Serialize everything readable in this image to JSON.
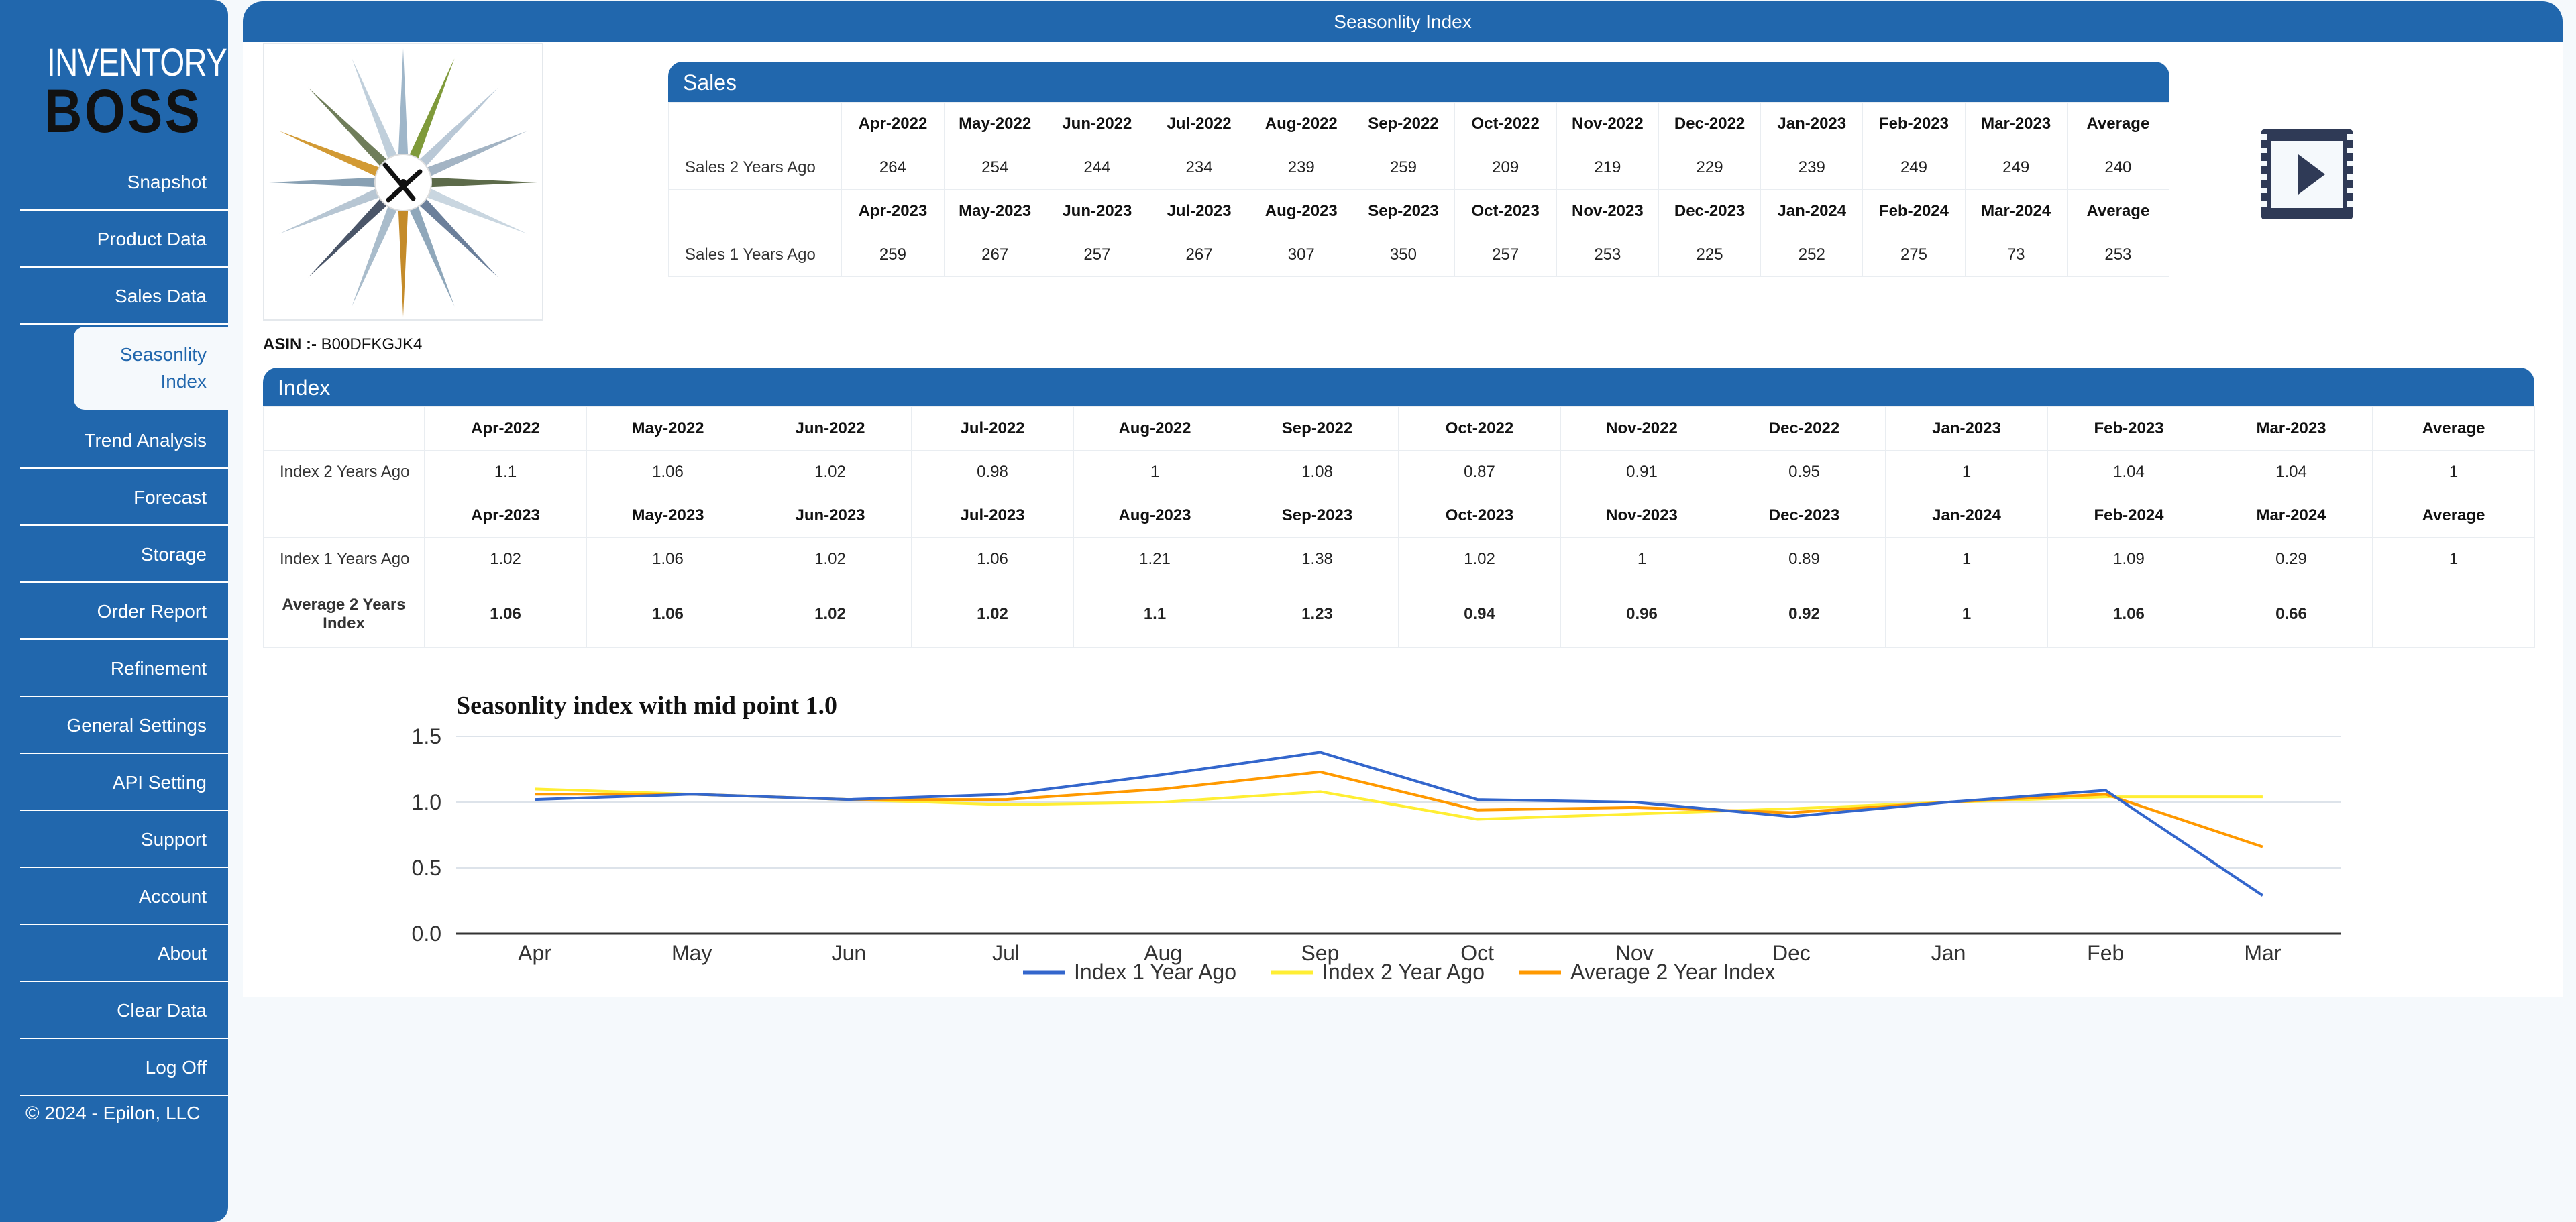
{
  "app": {
    "logo_line1": "INVENTORY",
    "logo_line2": "BOSS",
    "page_title": "Seasonlity Index",
    "copyright": "© 2024 - Epilon, LLC"
  },
  "nav": [
    {
      "label": "Snapshot"
    },
    {
      "label": "Product Data"
    },
    {
      "label": "Sales Data"
    },
    {
      "label": "Seasonlity Index",
      "active": true
    },
    {
      "label": "Trend Analysis"
    },
    {
      "label": "Forecast"
    },
    {
      "label": "Storage"
    },
    {
      "label": "Order Report"
    },
    {
      "label": "Refinement"
    },
    {
      "label": "General Settings"
    },
    {
      "label": "API Setting"
    },
    {
      "label": "Support"
    },
    {
      "label": "Account"
    },
    {
      "label": "About"
    },
    {
      "label": "Clear Data"
    },
    {
      "label": "Log Off"
    }
  ],
  "asin": {
    "label": "ASIN :-",
    "value": "B00DFKGJK4"
  },
  "sales": {
    "title": "Sales",
    "header_2y": [
      "Apr-2022",
      "May-2022",
      "Jun-2022",
      "Jul-2022",
      "Aug-2022",
      "Sep-2022",
      "Oct-2022",
      "Nov-2022",
      "Dec-2022",
      "Jan-2023",
      "Feb-2023",
      "Mar-2023",
      "Average"
    ],
    "row_2y": {
      "label": "Sales 2 Years Ago",
      "values": [
        "264",
        "254",
        "244",
        "234",
        "239",
        "259",
        "209",
        "219",
        "229",
        "239",
        "249",
        "249",
        "240"
      ]
    },
    "header_1y": [
      "Apr-2023",
      "May-2023",
      "Jun-2023",
      "Jul-2023",
      "Aug-2023",
      "Sep-2023",
      "Oct-2023",
      "Nov-2023",
      "Dec-2023",
      "Jan-2024",
      "Feb-2024",
      "Mar-2024",
      "Average"
    ],
    "row_1y": {
      "label": "Sales 1 Years Ago",
      "values": [
        "259",
        "267",
        "257",
        "267",
        "307",
        "350",
        "257",
        "253",
        "225",
        "252",
        "275",
        "73",
        "253"
      ]
    }
  },
  "index": {
    "title": "Index",
    "header_2y": [
      "Apr-2022",
      "May-2022",
      "Jun-2022",
      "Jul-2022",
      "Aug-2022",
      "Sep-2022",
      "Oct-2022",
      "Nov-2022",
      "Dec-2022",
      "Jan-2023",
      "Feb-2023",
      "Mar-2023",
      "Average"
    ],
    "row_2y": {
      "label": "Index 2 Years Ago",
      "values": [
        "1.1",
        "1.06",
        "1.02",
        "0.98",
        "1",
        "1.08",
        "0.87",
        "0.91",
        "0.95",
        "1",
        "1.04",
        "1.04",
        "1"
      ]
    },
    "header_1y": [
      "Apr-2023",
      "May-2023",
      "Jun-2023",
      "Jul-2023",
      "Aug-2023",
      "Sep-2023",
      "Oct-2023",
      "Nov-2023",
      "Dec-2023",
      "Jan-2024",
      "Feb-2024",
      "Mar-2024",
      "Average"
    ],
    "row_1y": {
      "label": "Index 1 Years Ago",
      "values": [
        "1.02",
        "1.06",
        "1.02",
        "1.06",
        "1.21",
        "1.38",
        "1.02",
        "1",
        "0.89",
        "1",
        "1.09",
        "0.29",
        "1"
      ]
    },
    "row_avg": {
      "label": "Average 2 Years Index",
      "values": [
        "1.06",
        "1.06",
        "1.02",
        "1.02",
        "1.1",
        "1.23",
        "0.94",
        "0.96",
        "0.92",
        "1",
        "1.06",
        "0.66",
        ""
      ]
    }
  },
  "chart_data": {
    "type": "line",
    "title": "Seasonlity index with mid point 1.0",
    "categories": [
      "Apr",
      "May",
      "Jun",
      "Jul",
      "Aug",
      "Sep",
      "Oct",
      "Nov",
      "Dec",
      "Jan",
      "Feb",
      "Mar"
    ],
    "ylim": [
      0,
      1.5
    ],
    "yticks": [
      "0.0",
      "0.5",
      "1.0",
      "1.5"
    ],
    "grid": true,
    "legend": "bottom",
    "series": [
      {
        "name": "Index 1 Year Ago",
        "color": "#3366cc",
        "values": [
          1.02,
          1.06,
          1.02,
          1.06,
          1.21,
          1.38,
          1.02,
          1,
          0.89,
          1,
          1.09,
          0.29
        ]
      },
      {
        "name": "Index 2 Year Ago",
        "color": "#ffee33",
        "values": [
          1.1,
          1.06,
          1.02,
          0.98,
          1,
          1.08,
          0.87,
          0.91,
          0.95,
          1,
          1.04,
          1.04
        ]
      },
      {
        "name": "Average 2 Year Index",
        "color": "#ff9900",
        "values": [
          1.06,
          1.06,
          1.02,
          1.02,
          1.1,
          1.23,
          0.94,
          0.96,
          0.92,
          1,
          1.06,
          0.66
        ]
      }
    ]
  },
  "colors": {
    "brand": "#2167ad",
    "background": "#f5f9fc"
  },
  "icons": {
    "video": "video-play-icon",
    "product": "clock-image"
  }
}
